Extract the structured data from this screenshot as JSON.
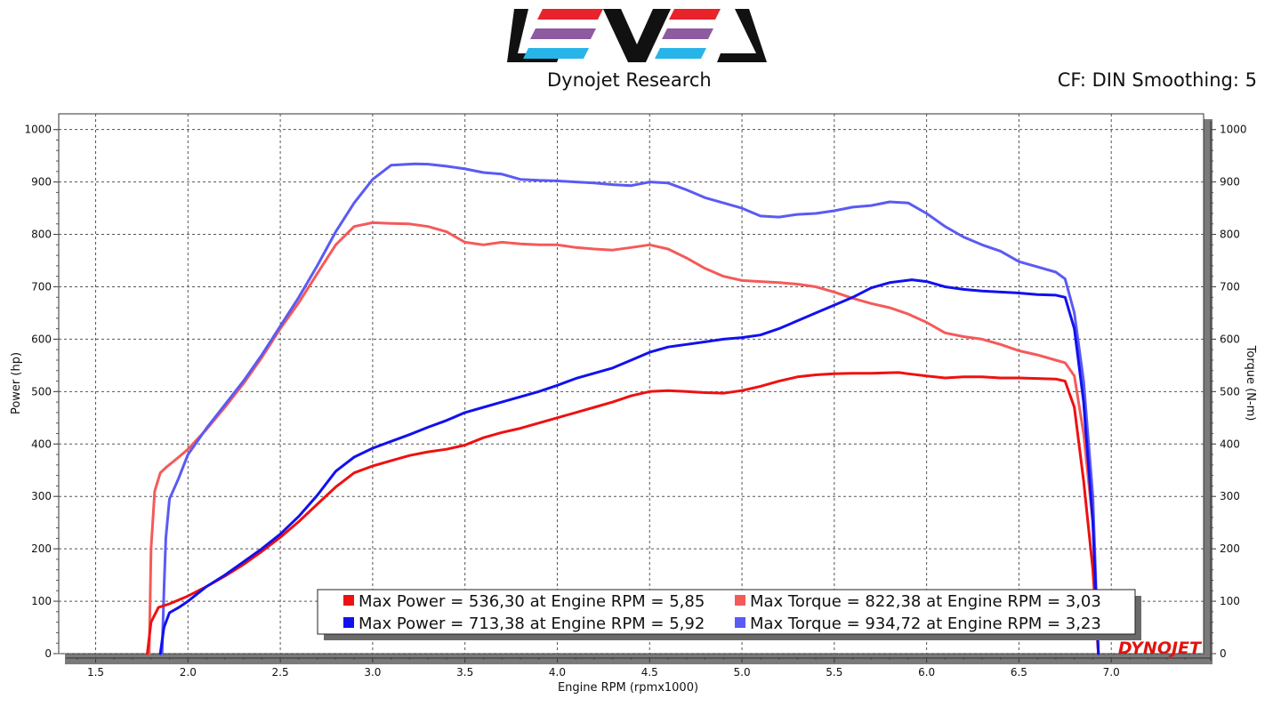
{
  "header": {
    "logo_text": "LEVEL",
    "title": "Dynojet Research",
    "cf_text": "CF: DIN Smoothing: 5",
    "brand": "DYNOJET"
  },
  "colors": {
    "power1": "#ee1111",
    "power2": "#1111ee",
    "torque1": "#f55a5a",
    "torque2": "#5a5af5",
    "logo_red": "#e8232b",
    "logo_purple": "#8e5aa0",
    "logo_blue": "#27b4e8"
  },
  "chart_data": {
    "type": "line",
    "title": "Dynojet Research",
    "xlabel": "Engine RPM (rpmx1000)",
    "ylabel": "Power (hp)",
    "y2label": "Torque (N-m)",
    "xlim": [
      1.3,
      7.5
    ],
    "ylim": [
      0,
      1030
    ],
    "y2lim": [
      0,
      1030
    ],
    "xticks": [
      "1.5",
      "2.0",
      "2.5",
      "3.0",
      "3.5",
      "4.0",
      "4.5",
      "5.0",
      "5.5",
      "6.0",
      "6.5",
      "7.0"
    ],
    "yticks": [
      "0",
      "100",
      "200",
      "300",
      "400",
      "500",
      "600",
      "700",
      "800",
      "900",
      "1000"
    ],
    "y2ticks": [
      "0",
      "100",
      "200",
      "300",
      "400",
      "500",
      "600",
      "700",
      "800",
      "900",
      "1000"
    ],
    "series": [
      {
        "name": "Max Power = 536,30 at Engine RPM = 5,85",
        "axis": "left",
        "color": "#ee1111",
        "x": [
          1.78,
          1.8,
          1.84,
          1.9,
          2.0,
          2.1,
          2.2,
          2.3,
          2.4,
          2.5,
          2.6,
          2.7,
          2.8,
          2.9,
          3.0,
          3.1,
          3.2,
          3.3,
          3.4,
          3.5,
          3.6,
          3.7,
          3.8,
          3.9,
          4.0,
          4.1,
          4.2,
          4.3,
          4.4,
          4.5,
          4.6,
          4.7,
          4.8,
          4.9,
          5.0,
          5.1,
          5.2,
          5.3,
          5.4,
          5.5,
          5.6,
          5.7,
          5.8,
          5.85,
          5.9,
          6.0,
          6.1,
          6.2,
          6.3,
          6.4,
          6.5,
          6.6,
          6.7,
          6.75,
          6.8,
          6.85,
          6.9,
          6.93
        ],
        "y": [
          0,
          60,
          88,
          95,
          110,
          128,
          148,
          170,
          195,
          222,
          252,
          285,
          318,
          345,
          358,
          368,
          378,
          385,
          390,
          398,
          412,
          422,
          430,
          440,
          450,
          460,
          470,
          480,
          492,
          500,
          502,
          500,
          498,
          497,
          502,
          510,
          520,
          528,
          532,
          534,
          535,
          535,
          536,
          536.3,
          534,
          530,
          526,
          528,
          528,
          526,
          526,
          525,
          524,
          520,
          470,
          330,
          160,
          0
        ]
      },
      {
        "name": "Max Power = 713,38 at Engine RPM = 5,92",
        "axis": "left",
        "color": "#1111ee",
        "x": [
          1.85,
          1.87,
          1.9,
          1.95,
          2.0,
          2.1,
          2.2,
          2.3,
          2.4,
          2.5,
          2.6,
          2.7,
          2.8,
          2.9,
          3.0,
          3.1,
          3.2,
          3.3,
          3.4,
          3.5,
          3.6,
          3.7,
          3.8,
          3.9,
          4.0,
          4.1,
          4.2,
          4.3,
          4.4,
          4.5,
          4.6,
          4.7,
          4.8,
          4.9,
          5.0,
          5.1,
          5.2,
          5.3,
          5.4,
          5.5,
          5.6,
          5.7,
          5.8,
          5.92,
          6.0,
          6.1,
          6.2,
          6.3,
          6.4,
          6.5,
          6.6,
          6.7,
          6.75,
          6.8,
          6.85,
          6.9,
          6.93
        ],
        "y": [
          0,
          50,
          78,
          88,
          100,
          128,
          150,
          175,
          200,
          228,
          262,
          302,
          348,
          375,
          392,
          405,
          418,
          432,
          445,
          460,
          470,
          480,
          490,
          500,
          512,
          525,
          535,
          545,
          560,
          575,
          585,
          590,
          595,
          600,
          603,
          608,
          620,
          635,
          650,
          665,
          680,
          698,
          708,
          713.38,
          710,
          700,
          695,
          692,
          690,
          688,
          685,
          684,
          680,
          620,
          480,
          250,
          0
        ]
      },
      {
        "name": "Max Torque = 822,38 at Engine RPM = 3,03",
        "axis": "right",
        "color": "#f55a5a",
        "x": [
          1.79,
          1.8,
          1.82,
          1.85,
          1.88,
          1.95,
          2.0,
          2.1,
          2.2,
          2.3,
          2.4,
          2.5,
          2.6,
          2.7,
          2.8,
          2.9,
          3.0,
          3.03,
          3.1,
          3.2,
          3.3,
          3.4,
          3.5,
          3.6,
          3.7,
          3.8,
          3.9,
          4.0,
          4.1,
          4.2,
          4.3,
          4.4,
          4.5,
          4.6,
          4.7,
          4.8,
          4.9,
          5.0,
          5.1,
          5.2,
          5.3,
          5.4,
          5.5,
          5.6,
          5.7,
          5.8,
          5.9,
          6.0,
          6.1,
          6.2,
          6.3,
          6.4,
          6.5,
          6.6,
          6.7,
          6.75,
          6.8,
          6.85,
          6.9,
          6.93
        ],
        "y": [
          0,
          200,
          310,
          345,
          355,
          375,
          390,
          428,
          470,
          515,
          565,
          620,
          670,
          725,
          780,
          815,
          822.38,
          822,
          821,
          820,
          815,
          805,
          785,
          780,
          785,
          782,
          780,
          780,
          775,
          772,
          770,
          775,
          780,
          772,
          755,
          735,
          720,
          712,
          710,
          708,
          705,
          700,
          690,
          678,
          668,
          660,
          648,
          632,
          612,
          605,
          600,
          590,
          578,
          570,
          560,
          555,
          530,
          420,
          250,
          0
        ]
      },
      {
        "name": "Max Torque = 934,72 at Engine RPM = 3,23",
        "axis": "right",
        "color": "#5a5af5",
        "x": [
          1.86,
          1.87,
          1.88,
          1.9,
          1.95,
          2.0,
          2.1,
          2.2,
          2.3,
          2.4,
          2.5,
          2.6,
          2.7,
          2.8,
          2.9,
          3.0,
          3.1,
          3.23,
          3.3,
          3.4,
          3.5,
          3.6,
          3.7,
          3.8,
          3.9,
          4.0,
          4.1,
          4.2,
          4.3,
          4.4,
          4.5,
          4.6,
          4.7,
          4.8,
          4.9,
          5.0,
          5.1,
          5.2,
          5.3,
          5.4,
          5.5,
          5.6,
          5.7,
          5.8,
          5.9,
          6.0,
          6.1,
          6.2,
          6.3,
          6.4,
          6.5,
          6.6,
          6.7,
          6.75,
          6.8,
          6.85,
          6.9,
          6.93
        ],
        "y": [
          0,
          120,
          220,
          295,
          335,
          380,
          430,
          475,
          520,
          570,
          625,
          680,
          740,
          805,
          860,
          905,
          932,
          934.72,
          934,
          930,
          925,
          918,
          915,
          905,
          903,
          902,
          900,
          898,
          895,
          893,
          900,
          898,
          885,
          870,
          860,
          850,
          835,
          833,
          838,
          840,
          845,
          852,
          855,
          862,
          860,
          840,
          815,
          795,
          780,
          768,
          748,
          738,
          728,
          715,
          650,
          520,
          300,
          0
        ]
      }
    ],
    "legend": {
      "placement": "bottom-right",
      "entries": [
        "Max Power = 536,30 at Engine RPM = 5,85",
        "Max Torque = 822,38 at Engine RPM = 3,03",
        "Max Power = 713,38 at Engine RPM = 5,92",
        "Max Torque = 934,72 at Engine RPM = 3,23"
      ]
    },
    "grid": true
  }
}
